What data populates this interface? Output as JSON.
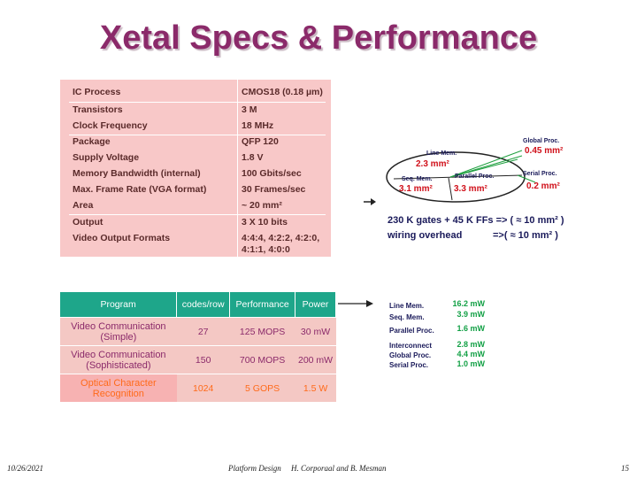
{
  "title": "Xetal Specs & Performance",
  "specs": [
    {
      "key": "IC Process",
      "value": "CMOS18 (0.18 µm)"
    },
    {
      "key": "Transistors",
      "value": "3 M"
    },
    {
      "key": "Clock Frequency",
      "value": "18 MHz"
    },
    {
      "key": "Package",
      "value": "QFP 120"
    },
    {
      "key": "Supply Voltage",
      "value": "1.8 V"
    },
    {
      "key": "Memory Bandwidth (internal)",
      "value": "100 Gbits/sec"
    },
    {
      "key": "Max. Frame Rate (VGA format)",
      "value": "30 Frames/sec"
    },
    {
      "key": "Area",
      "value": "~ 20 mm²"
    },
    {
      "key": "Output",
      "value": "3 X 10 bits"
    },
    {
      "key": "Video Output Formats",
      "value": "4:4:4, 4:2:2, 4:2:0, 4:1:1, 4:0:0"
    }
  ],
  "area_diagram": {
    "line_mem_label": "Line Mem.",
    "line_mem_value": "2.3   mm²",
    "global_proc_label": "Global Proc.",
    "global_proc_value": "0.45 mm²",
    "seq_mem_label": "Seq. Mem.",
    "seq_mem_value": "3.1 mm²",
    "parallel_proc_label": "Parallel Proc.",
    "parallel_proc_value": "3.3 mm²",
    "serial_proc_label": "Serial Proc.",
    "serial_proc_value": "0.2 mm²",
    "gates_line": "230 K gates + 45 K FFs => ( ≈ 10 mm² )",
    "wiring_label": "wiring overhead",
    "wiring_value": "=>( ≈ 10 mm² )"
  },
  "perf_table": {
    "headers": [
      "Program",
      "codes/row",
      "Performance",
      "Power"
    ],
    "rows": [
      {
        "program": "Video Communication (Simple)",
        "codes": "27",
        "performance": "125 MOPS",
        "power": "30 mW"
      },
      {
        "program": "Video Communication (Sophisticated)",
        "codes": "150",
        "performance": "700 MOPS",
        "power": "200 mW"
      },
      {
        "program": "Optical Character Recognition",
        "codes": "1024",
        "performance": "5 GOPS",
        "power": "1.5 W"
      }
    ]
  },
  "power_breakdown": [
    {
      "label": "Line Mem.",
      "value": "16.2 mW"
    },
    {
      "label": "Seq. Mem.",
      "value": "3.9 mW"
    },
    {
      "label": "Parallel Proc.",
      "value": "1.6 mW"
    },
    {
      "label": "Interconnect",
      "value": "2.8 mW"
    },
    {
      "label": "Global Proc.",
      "value": "4.4 mW"
    },
    {
      "label": "Serial Proc.",
      "value": "1.0 mW"
    }
  ],
  "footer": {
    "date": "10/26/2021",
    "center": "Platform Design     H. Corporaal and B. Mesman",
    "page": "15"
  }
}
